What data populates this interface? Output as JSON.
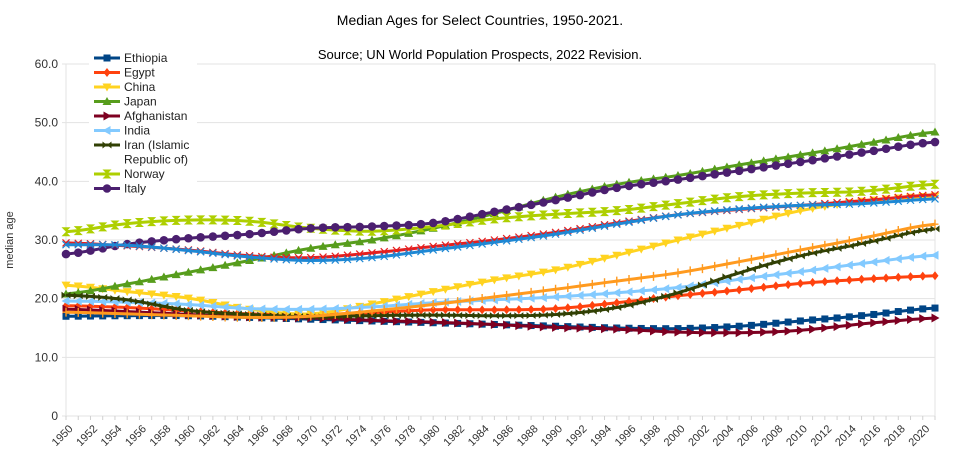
{
  "chart_data": {
    "type": "line",
    "title": "Median Ages for Select Countries, 1950-2021.",
    "subtitle": "Source; UN World Population Prospects, 2022 Revision.",
    "xlabel": "",
    "ylabel": "median age",
    "ylim": [
      0,
      60
    ],
    "yticks": [
      "0",
      "10.0",
      "20.0",
      "30.0",
      "40.0",
      "50.0",
      "60.0"
    ],
    "xlim": [
      1950,
      2021
    ],
    "xtick_labels": [
      "1950",
      "1952",
      "1954",
      "1956",
      "1958",
      "1960",
      "1962",
      "1964",
      "1966",
      "1968",
      "1970",
      "1972",
      "1974",
      "1976",
      "1978",
      "1980",
      "1982",
      "1984",
      "1986",
      "1988",
      "1990",
      "1992",
      "1994",
      "1996",
      "1998",
      "2000",
      "2002",
      "2004",
      "2006",
      "2008",
      "2010",
      "2012",
      "2014",
      "2016",
      "2018",
      "2020"
    ],
    "grid": true,
    "legend_position": "top-left",
    "x": [
      1950,
      1955,
      1960,
      1965,
      1970,
      1975,
      1980,
      1985,
      1990,
      1995,
      2000,
      2005,
      2010,
      2015,
      2021
    ],
    "series": [
      {
        "name": "Ethiopia",
        "color": "#004586",
        "marker": "square",
        "in_legend": true,
        "values": [
          17.0,
          17.1,
          17.1,
          16.8,
          16.5,
          16.2,
          15.9,
          15.6,
          15.3,
          15.0,
          14.9,
          15.3,
          16.2,
          17.1,
          18.4
        ]
      },
      {
        "name": "Egypt",
        "color": "#ff420e",
        "marker": "diamond",
        "in_legend": true,
        "values": [
          18.8,
          18.5,
          17.9,
          17.4,
          17.3,
          17.6,
          18.1,
          18.1,
          18.3,
          19.3,
          20.5,
          21.5,
          22.6,
          23.3,
          23.9
        ]
      },
      {
        "name": "China",
        "color": "#ffd320",
        "marker": "triangle-down",
        "in_legend": true,
        "values": [
          22.3,
          21.2,
          20.1,
          18.2,
          17.4,
          19.1,
          21.2,
          23.2,
          24.9,
          27.4,
          30.0,
          32.5,
          35.0,
          36.6,
          37.5
        ]
      },
      {
        "name": "Japan",
        "color": "#579d1c",
        "marker": "triangle-up",
        "in_legend": true,
        "values": [
          20.8,
          22.5,
          24.5,
          26.5,
          28.6,
          30.0,
          32.0,
          34.5,
          37.3,
          39.5,
          41.0,
          42.8,
          44.5,
          46.3,
          48.4
        ]
      },
      {
        "name": "Afghanistan",
        "color": "#7e0021",
        "marker": "triangle-right",
        "in_legend": true,
        "values": [
          18.2,
          17.8,
          17.3,
          16.9,
          16.7,
          16.3,
          16.0,
          15.6,
          15.1,
          14.8,
          14.3,
          14.2,
          14.6,
          15.7,
          16.7
        ]
      },
      {
        "name": "India",
        "color": "#83caff",
        "marker": "triangle-left",
        "in_legend": true,
        "values": [
          19.6,
          19.4,
          19.0,
          18.3,
          18.2,
          18.6,
          19.3,
          19.8,
          20.3,
          21.0,
          21.9,
          23.3,
          24.6,
          26.0,
          27.4
        ]
      },
      {
        "name": "Iran (Islamic Republic of)",
        "color": "#314004",
        "marker": "bowtie",
        "in_legend": true,
        "values": [
          20.6,
          19.8,
          18.0,
          17.3,
          16.9,
          17.1,
          17.2,
          17.1,
          17.3,
          18.5,
          21.0,
          24.4,
          27.3,
          29.4,
          31.9
        ]
      },
      {
        "name": "Norway",
        "color": "#aecf00",
        "marker": "hourglass",
        "in_legend": true,
        "values": [
          31.4,
          32.8,
          33.4,
          33.2,
          32.0,
          31.5,
          32.3,
          33.6,
          34.4,
          35.0,
          36.2,
          37.4,
          38.0,
          38.3,
          39.5
        ]
      },
      {
        "name": "Italy",
        "color": "#4b1f6f",
        "marker": "circle",
        "in_legend": true,
        "values": [
          27.6,
          29.3,
          30.3,
          31.0,
          32.0,
          32.3,
          32.9,
          34.8,
          36.8,
          38.9,
          40.3,
          41.8,
          43.3,
          44.9,
          46.7
        ]
      },
      {
        "name": "",
        "color": "#e51f1f",
        "marker": "x",
        "in_legend": false,
        "values": [
          29.5,
          29.0,
          28.3,
          27.3,
          27.0,
          27.8,
          28.9,
          30.0,
          31.3,
          32.9,
          34.3,
          35.2,
          35.9,
          36.7,
          37.7
        ]
      },
      {
        "name": "",
        "color": "#1e88d4",
        "marker": "x",
        "in_legend": false,
        "values": [
          29.2,
          29.1,
          28.2,
          27.1,
          26.5,
          27.0,
          28.3,
          29.6,
          31.0,
          32.7,
          34.3,
          35.3,
          35.9,
          36.2,
          37.0
        ]
      },
      {
        "name": "",
        "color": "#ff9a1f",
        "marker": "plus",
        "in_legend": false,
        "values": [
          17.7,
          17.4,
          17.1,
          16.8,
          17.0,
          17.9,
          19.0,
          20.3,
          21.6,
          23.0,
          24.4,
          26.3,
          28.3,
          30.3,
          32.7
        ]
      }
    ]
  }
}
